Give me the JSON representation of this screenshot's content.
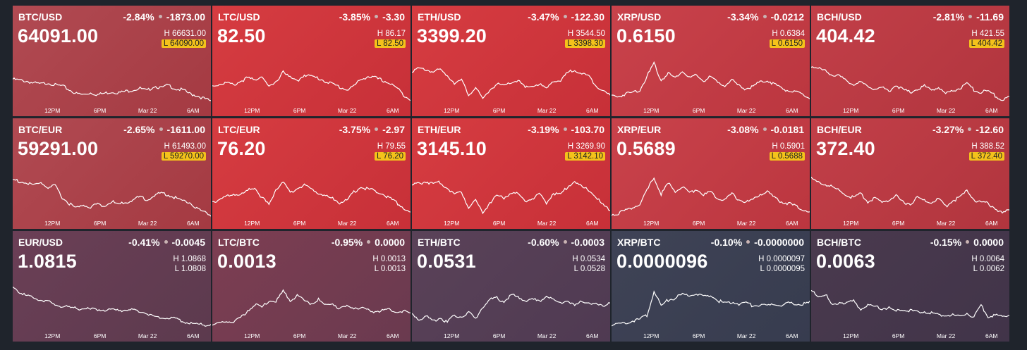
{
  "x_ticks": [
    "12PM",
    "6PM",
    "Mar 22",
    "6AM"
  ],
  "tiles": [
    {
      "pair": "BTC/USD",
      "pct": "-2.84%",
      "abs": "-1873.00",
      "price": "64091.00",
      "high": "H 66631.00",
      "low": "L 64090.00",
      "low_hit": true,
      "bg": [
        "#b14a52",
        "#a43a42"
      ],
      "series": [
        0.52,
        0.5,
        0.48,
        0.44,
        0.42,
        0.45,
        0.4,
        0.38,
        0.3,
        0.22,
        0.2,
        0.24,
        0.2,
        0.23,
        0.26,
        0.24,
        0.27,
        0.3,
        0.33,
        0.28,
        0.38,
        0.34,
        0.4,
        0.32,
        0.3,
        0.22,
        0.18,
        0.12,
        0.06
      ]
    },
    {
      "pair": "LTC/USD",
      "pct": "-3.85%",
      "abs": "-3.30",
      "price": "82.50",
      "high": "H 86.17",
      "low": "L 82.50",
      "low_hit": true,
      "bg": [
        "#d63c41",
        "#c73038"
      ],
      "series": [
        0.38,
        0.42,
        0.45,
        0.4,
        0.48,
        0.55,
        0.5,
        0.6,
        0.35,
        0.45,
        0.7,
        0.55,
        0.48,
        0.62,
        0.58,
        0.54,
        0.48,
        0.42,
        0.36,
        0.3,
        0.38,
        0.52,
        0.58,
        0.55,
        0.5,
        0.44,
        0.35,
        0.2,
        0.1
      ]
    },
    {
      "pair": "ETH/USD",
      "pct": "-3.47%",
      "abs": "-122.30",
      "price": "3399.20",
      "high": "H 3544.50",
      "low": "L 3398.30",
      "low_hit": true,
      "bg": [
        "#d63c41",
        "#c73038"
      ],
      "series": [
        0.7,
        0.74,
        0.72,
        0.68,
        0.72,
        0.6,
        0.45,
        0.5,
        0.2,
        0.35,
        0.1,
        0.3,
        0.42,
        0.38,
        0.45,
        0.5,
        0.34,
        0.38,
        0.42,
        0.32,
        0.5,
        0.48,
        0.66,
        0.72,
        0.64,
        0.58,
        0.4,
        0.28,
        0.18
      ]
    },
    {
      "pair": "XRP/USD",
      "pct": "-3.34%",
      "abs": "-0.0212",
      "price": "0.6150",
      "high": "H 0.6384",
      "low": "L 0.6150",
      "low_hit": true,
      "bg": [
        "#c9424b",
        "#bb363f"
      ],
      "series": [
        0.18,
        0.16,
        0.22,
        0.25,
        0.3,
        0.58,
        0.85,
        0.5,
        0.65,
        0.55,
        0.7,
        0.55,
        0.6,
        0.48,
        0.58,
        0.44,
        0.4,
        0.5,
        0.38,
        0.32,
        0.38,
        0.46,
        0.5,
        0.42,
        0.34,
        0.28,
        0.25,
        0.2,
        0.12
      ]
    },
    {
      "pair": "BCH/USD",
      "pct": "-2.81%",
      "abs": "-11.69",
      "price": "404.42",
      "high": "H 421.55",
      "low": "L 404.42",
      "low_hit": true,
      "bg": [
        "#c23f48",
        "#b1353e"
      ],
      "series": [
        0.8,
        0.74,
        0.7,
        0.62,
        0.58,
        0.48,
        0.42,
        0.45,
        0.38,
        0.32,
        0.35,
        0.28,
        0.4,
        0.3,
        0.25,
        0.32,
        0.38,
        0.3,
        0.35,
        0.22,
        0.28,
        0.34,
        0.42,
        0.3,
        0.25,
        0.28,
        0.18,
        0.08,
        0.15
      ]
    },
    {
      "pair": "BTC/EUR",
      "pct": "-2.65%",
      "abs": "-1611.00",
      "price": "59291.00",
      "high": "H 61493.00",
      "low": "L 59270.00",
      "low_hit": true,
      "bg": [
        "#b14a52",
        "#a43a42"
      ],
      "series": [
        0.78,
        0.74,
        0.7,
        0.66,
        0.72,
        0.6,
        0.65,
        0.4,
        0.28,
        0.18,
        0.25,
        0.2,
        0.28,
        0.22,
        0.32,
        0.26,
        0.3,
        0.36,
        0.42,
        0.36,
        0.44,
        0.5,
        0.46,
        0.4,
        0.34,
        0.3,
        0.18,
        0.1,
        0.04
      ]
    },
    {
      "pair": "LTC/EUR",
      "pct": "-3.75%",
      "abs": "-2.97",
      "price": "76.20",
      "high": "H 79.55",
      "low": "L 76.20",
      "low_hit": true,
      "bg": [
        "#d63c41",
        "#c73038"
      ],
      "series": [
        0.32,
        0.36,
        0.42,
        0.48,
        0.45,
        0.55,
        0.62,
        0.4,
        0.25,
        0.58,
        0.72,
        0.5,
        0.6,
        0.66,
        0.58,
        0.5,
        0.44,
        0.38,
        0.3,
        0.34,
        0.52,
        0.62,
        0.58,
        0.55,
        0.48,
        0.4,
        0.3,
        0.2,
        0.08
      ]
    },
    {
      "pair": "ETH/EUR",
      "pct": "-3.19%",
      "abs": "-103.70",
      "price": "3145.10",
      "high": "H 3269.90",
      "low": "L 3142.10",
      "low_hit": true,
      "bg": [
        "#d63c41",
        "#c73038"
      ],
      "series": [
        0.66,
        0.7,
        0.74,
        0.68,
        0.72,
        0.6,
        0.48,
        0.52,
        0.2,
        0.36,
        0.08,
        0.3,
        0.44,
        0.4,
        0.5,
        0.48,
        0.34,
        0.38,
        0.46,
        0.3,
        0.5,
        0.46,
        0.64,
        0.74,
        0.62,
        0.56,
        0.42,
        0.24,
        0.14
      ]
    },
    {
      "pair": "XRP/EUR",
      "pct": "-3.08%",
      "abs": "-0.0181",
      "price": "0.5689",
      "high": "H 0.5901",
      "low": "L 0.5688",
      "low_hit": true,
      "bg": [
        "#c9424b",
        "#bb363f"
      ],
      "series": [
        0.05,
        0.08,
        0.14,
        0.2,
        0.25,
        0.55,
        0.82,
        0.48,
        0.7,
        0.54,
        0.62,
        0.5,
        0.58,
        0.46,
        0.52,
        0.4,
        0.36,
        0.48,
        0.36,
        0.3,
        0.36,
        0.48,
        0.52,
        0.4,
        0.32,
        0.28,
        0.22,
        0.16,
        0.1
      ]
    },
    {
      "pair": "BCH/EUR",
      "pct": "-3.27%",
      "abs": "-12.60",
      "price": "372.40",
      "high": "H 388.52",
      "low": "L 372.40",
      "low_hit": true,
      "bg": [
        "#c23f48",
        "#b1353e"
      ],
      "series": [
        0.8,
        0.72,
        0.68,
        0.62,
        0.55,
        0.45,
        0.4,
        0.48,
        0.32,
        0.38,
        0.3,
        0.36,
        0.44,
        0.3,
        0.28,
        0.4,
        0.34,
        0.3,
        0.38,
        0.22,
        0.34,
        0.4,
        0.55,
        0.36,
        0.3,
        0.28,
        0.18,
        0.08,
        0.14
      ]
    },
    {
      "pair": "EUR/USD",
      "pct": "-0.41%",
      "abs": "-0.0045",
      "price": "1.0815",
      "high": "H 1.0868",
      "low": "L 1.0808",
      "low_hit": false,
      "bg": [
        "#6b3f56",
        "#5c3a4e"
      ],
      "series": [
        0.9,
        0.78,
        0.7,
        0.66,
        0.62,
        0.58,
        0.52,
        0.48,
        0.46,
        0.44,
        0.44,
        0.42,
        0.42,
        0.41,
        0.4,
        0.4,
        0.42,
        0.4,
        0.38,
        0.34,
        0.28,
        0.25,
        0.24,
        0.22,
        0.18,
        0.14,
        0.1,
        0.1,
        0.12
      ]
    },
    {
      "pair": "LTC/BTC",
      "pct": "-0.95%",
      "abs": "0.0000",
      "price": "0.0013",
      "high": "H 0.0013",
      "low": "L 0.0013",
      "low_hit": false,
      "bg": [
        "#7d3e52",
        "#6a3a4f"
      ],
      "series": [
        0.1,
        0.12,
        0.18,
        0.15,
        0.25,
        0.4,
        0.52,
        0.46,
        0.6,
        0.58,
        0.8,
        0.62,
        0.7,
        0.6,
        0.55,
        0.62,
        0.5,
        0.54,
        0.44,
        0.48,
        0.46,
        0.44,
        0.4,
        0.38,
        0.4,
        0.42,
        0.36,
        0.4,
        0.34
      ]
    },
    {
      "pair": "ETH/BTC",
      "pct": "-0.60%",
      "abs": "-0.0003",
      "price": "0.0531",
      "high": "H 0.0534",
      "low": "L 0.0528",
      "low_hit": false,
      "bg": [
        "#5a4258",
        "#4f3a52"
      ],
      "series": [
        0.32,
        0.22,
        0.28,
        0.18,
        0.25,
        0.15,
        0.3,
        0.26,
        0.36,
        0.22,
        0.48,
        0.62,
        0.66,
        0.58,
        0.72,
        0.68,
        0.6,
        0.64,
        0.58,
        0.7,
        0.62,
        0.55,
        0.62,
        0.48,
        0.6,
        0.56,
        0.52,
        0.5,
        0.58
      ]
    },
    {
      "pair": "XRP/BTC",
      "pct": "-0.10%",
      "abs": "-0.0000000",
      "price": "0.0000096",
      "high": "H 0.0000097",
      "low": "L 0.0000095",
      "low_hit": false,
      "bg": [
        "#3f4356",
        "#373c4f"
      ],
      "series": [
        0.1,
        0.12,
        0.15,
        0.18,
        0.22,
        0.3,
        0.8,
        0.5,
        0.62,
        0.66,
        0.74,
        0.7,
        0.76,
        0.68,
        0.72,
        0.6,
        0.56,
        0.58,
        0.54,
        0.56,
        0.5,
        0.52,
        0.48,
        0.54,
        0.5,
        0.55,
        0.52,
        0.54,
        0.56
      ]
    },
    {
      "pair": "BCH/BTC",
      "pct": "-0.15%",
      "abs": "0.0000",
      "price": "0.0063",
      "high": "H 0.0064",
      "low": "L 0.0062",
      "low_hit": false,
      "bg": [
        "#4a3a4e",
        "#413449"
      ],
      "series": [
        0.8,
        0.7,
        0.74,
        0.5,
        0.58,
        0.55,
        0.6,
        0.42,
        0.52,
        0.48,
        0.44,
        0.46,
        0.38,
        0.42,
        0.4,
        0.36,
        0.38,
        0.34,
        0.3,
        0.32,
        0.3,
        0.28,
        0.34,
        0.26,
        0.5,
        0.28,
        0.3,
        0.26,
        0.32
      ]
    }
  ]
}
